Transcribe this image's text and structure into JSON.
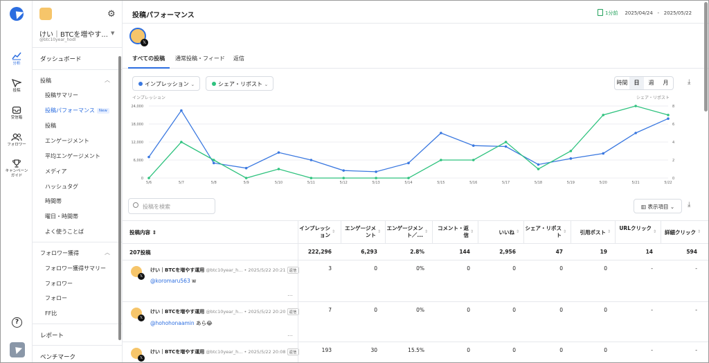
{
  "rail": [
    {
      "label": "分析",
      "icon": "chart-line-icon",
      "active": true
    },
    {
      "label": "投稿",
      "icon": "send-icon",
      "active": false
    },
    {
      "label": "受信箱",
      "icon": "inbox-icon",
      "active": false
    },
    {
      "label": "フォロワー",
      "icon": "users-icon",
      "active": false
    },
    {
      "label": "キャンペーン\nガイド",
      "icon": "trophy-icon",
      "active": false
    }
  ],
  "side": {
    "account_name": "けい｜BTCを増やす...",
    "account_handle": "@btc10year_hodl",
    "dashboard": "ダッシュボード",
    "section_posts": "投稿",
    "post_items": [
      "投稿サマリー",
      "投稿パフォーマンス",
      "投稿",
      "エンゲージメント",
      "平均エンゲージメント",
      "メディア",
      "ハッシュタグ",
      "時間帯",
      "曜日・時間帯",
      "よく使うことば"
    ],
    "new_badge": "New",
    "section_followers": "フォロワー獲得",
    "follower_items": [
      "フォロワー獲得サマリー",
      "フォロワー",
      "フォロー",
      "FF比"
    ],
    "report": "レポート",
    "benchmark": "ベンチマーク"
  },
  "header": {
    "title": "投稿パフォーマンス",
    "lag": "1分前",
    "date_from": "2025/04/24",
    "date_sep": "-",
    "date_to": "2025/05/22"
  },
  "tabs": [
    "すべての投稿",
    "通常投稿・フィード",
    "返信"
  ],
  "metric_left": "インプレッション",
  "metric_right": "シェア・リポスト",
  "period": [
    "時間",
    "日",
    "週",
    "月"
  ],
  "period_active": "日",
  "colors": {
    "impressions": "#3a78e0",
    "shares": "#2ec27e",
    "accent": "#2b6de0"
  },
  "chart_data": {
    "type": "line",
    "x": [
      "5/6",
      "5/7",
      "5/8",
      "5/9",
      "5/10",
      "5/11",
      "5/12",
      "5/13",
      "5/14",
      "5/15",
      "5/16",
      "5/17",
      "5/18",
      "5/19",
      "5/20",
      "5/21",
      "5/22"
    ],
    "series": [
      {
        "name": "インプレッション",
        "axis": "left",
        "values": [
          7000,
          22500,
          5000,
          3300,
          8500,
          6000,
          2500,
          2100,
          5000,
          15000,
          10800,
          10500,
          4500,
          6500,
          8200,
          15000,
          19800
        ]
      },
      {
        "name": "シェア・リポスト",
        "axis": "right",
        "values": [
          0,
          4,
          2,
          0,
          1,
          0,
          0,
          0,
          0,
          2,
          2,
          4,
          1,
          3,
          7,
          8,
          7
        ]
      }
    ],
    "ylabel_left": "インプレッション",
    "ylabel_right": "シェア・リポスト",
    "y_left_ticks": [
      "0",
      "6,000",
      "12,000",
      "18,000",
      "24,000"
    ],
    "y_right_ticks": [
      "0",
      "2",
      "4",
      "6",
      "8"
    ],
    "ylim_left": [
      0,
      24000
    ],
    "ylim_right": [
      0,
      8
    ]
  },
  "search_placeholder": "投稿を検索",
  "columns_button": "表示項目",
  "table": {
    "headers": [
      "投稿内容",
      "インプレッション",
      "エンゲージメント",
      "エンゲージメント／...",
      "コメント・返信",
      "いいね",
      "シェア・リポスト",
      "引用ポスト",
      "URLクリック",
      "詳細クリック"
    ],
    "total_label": "207投稿",
    "totals": [
      "222,296",
      "6,293",
      "2.8%",
      "144",
      "2,956",
      "47",
      "19",
      "14",
      "594"
    ],
    "rows": [
      {
        "name": "けい｜BTCを増やす運用",
        "handle": "@btc10year_h...",
        "time": "2025/5/22 20:21",
        "tag": "返信",
        "mention": "@koromaru563",
        "text": " w",
        "values": [
          "3",
          "0",
          "0%",
          "0",
          "0",
          "0",
          "0",
          "-",
          "-"
        ]
      },
      {
        "name": "けい｜BTCを増やす運用",
        "handle": "@btc10year_h...",
        "time": "2025/5/22 20:20",
        "tag": "返信",
        "mention": "@hohohonaamin",
        "text": " あら😂",
        "values": [
          "7",
          "0",
          "0%",
          "0",
          "0",
          "0",
          "0",
          "-",
          "-"
        ]
      },
      {
        "name": "けい｜BTCを増やす運用",
        "handle": "@btc10year_h...",
        "time": "2025/5/22 20:08",
        "tag": "返信",
        "mention": "",
        "text": "",
        "values": [
          "193",
          "30",
          "15.5%",
          "0",
          "0",
          "0",
          "0",
          "-",
          "-"
        ]
      }
    ]
  }
}
